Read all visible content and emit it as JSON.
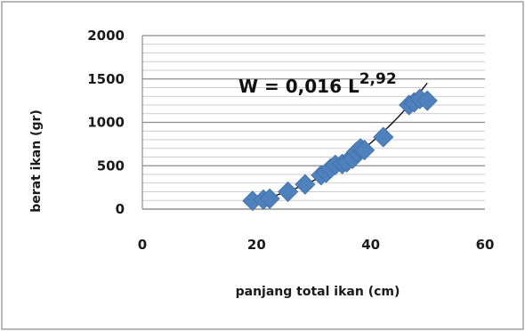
{
  "chart_data": {
    "type": "scatter",
    "title": "",
    "xlabel": "panjang total ikan (cm)",
    "ylabel": "berat ikan (gr)",
    "xlim": [
      0,
      60
    ],
    "ylim": [
      0,
      2000
    ],
    "x_ticks": [
      "0",
      "20",
      "40",
      "60"
    ],
    "y_ticks": [
      "0",
      "500",
      "1000",
      "1500",
      "2000"
    ],
    "grid": true,
    "legend": "none",
    "marker": "diamond",
    "point_color": "#4f81bd",
    "trendline_color": "#000000",
    "trendline": {
      "type": "power",
      "a": 0.016,
      "b": 2.92,
      "label_main": "W = 0,016 L",
      "label_exp": "2,92"
    },
    "series": [
      {
        "points": [
          [
            19.3,
            95
          ],
          [
            21.2,
            110
          ],
          [
            22.3,
            120
          ],
          [
            25.5,
            200
          ],
          [
            28.5,
            285
          ],
          [
            31.3,
            390
          ],
          [
            32.2,
            420
          ],
          [
            33.0,
            470
          ],
          [
            33.8,
            510
          ],
          [
            35.0,
            520
          ],
          [
            35.8,
            540
          ],
          [
            36.8,
            580
          ],
          [
            37.5,
            660
          ],
          [
            38.2,
            700
          ],
          [
            38.9,
            680
          ],
          [
            42.2,
            830
          ],
          [
            46.7,
            1200
          ],
          [
            47.6,
            1230
          ],
          [
            48.6,
            1270
          ],
          [
            49.9,
            1250
          ]
        ]
      }
    ]
  }
}
